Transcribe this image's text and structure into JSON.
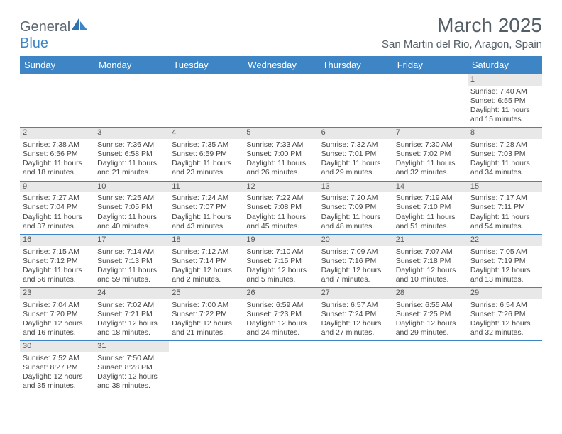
{
  "logo": {
    "text1": "General",
    "text2": "Blue"
  },
  "title": "March 2025",
  "location": "San Martin del Rio, Aragon, Spain",
  "colors": {
    "header_bg": "#3e85c6",
    "header_text": "#ffffff",
    "border": "#3e85c6",
    "daynum_bg": "#e8e8e8",
    "text": "#444444",
    "title_color": "#545e66"
  },
  "weekdays": [
    "Sunday",
    "Monday",
    "Tuesday",
    "Wednesday",
    "Thursday",
    "Friday",
    "Saturday"
  ],
  "weeks": [
    [
      null,
      null,
      null,
      null,
      null,
      null,
      {
        "n": "1",
        "sr": "Sunrise: 7:40 AM",
        "ss": "Sunset: 6:55 PM",
        "dl1": "Daylight: 11 hours",
        "dl2": "and 15 minutes."
      }
    ],
    [
      {
        "n": "2",
        "sr": "Sunrise: 7:38 AM",
        "ss": "Sunset: 6:56 PM",
        "dl1": "Daylight: 11 hours",
        "dl2": "and 18 minutes."
      },
      {
        "n": "3",
        "sr": "Sunrise: 7:36 AM",
        "ss": "Sunset: 6:58 PM",
        "dl1": "Daylight: 11 hours",
        "dl2": "and 21 minutes."
      },
      {
        "n": "4",
        "sr": "Sunrise: 7:35 AM",
        "ss": "Sunset: 6:59 PM",
        "dl1": "Daylight: 11 hours",
        "dl2": "and 23 minutes."
      },
      {
        "n": "5",
        "sr": "Sunrise: 7:33 AM",
        "ss": "Sunset: 7:00 PM",
        "dl1": "Daylight: 11 hours",
        "dl2": "and 26 minutes."
      },
      {
        "n": "6",
        "sr": "Sunrise: 7:32 AM",
        "ss": "Sunset: 7:01 PM",
        "dl1": "Daylight: 11 hours",
        "dl2": "and 29 minutes."
      },
      {
        "n": "7",
        "sr": "Sunrise: 7:30 AM",
        "ss": "Sunset: 7:02 PM",
        "dl1": "Daylight: 11 hours",
        "dl2": "and 32 minutes."
      },
      {
        "n": "8",
        "sr": "Sunrise: 7:28 AM",
        "ss": "Sunset: 7:03 PM",
        "dl1": "Daylight: 11 hours",
        "dl2": "and 34 minutes."
      }
    ],
    [
      {
        "n": "9",
        "sr": "Sunrise: 7:27 AM",
        "ss": "Sunset: 7:04 PM",
        "dl1": "Daylight: 11 hours",
        "dl2": "and 37 minutes."
      },
      {
        "n": "10",
        "sr": "Sunrise: 7:25 AM",
        "ss": "Sunset: 7:05 PM",
        "dl1": "Daylight: 11 hours",
        "dl2": "and 40 minutes."
      },
      {
        "n": "11",
        "sr": "Sunrise: 7:24 AM",
        "ss": "Sunset: 7:07 PM",
        "dl1": "Daylight: 11 hours",
        "dl2": "and 43 minutes."
      },
      {
        "n": "12",
        "sr": "Sunrise: 7:22 AM",
        "ss": "Sunset: 7:08 PM",
        "dl1": "Daylight: 11 hours",
        "dl2": "and 45 minutes."
      },
      {
        "n": "13",
        "sr": "Sunrise: 7:20 AM",
        "ss": "Sunset: 7:09 PM",
        "dl1": "Daylight: 11 hours",
        "dl2": "and 48 minutes."
      },
      {
        "n": "14",
        "sr": "Sunrise: 7:19 AM",
        "ss": "Sunset: 7:10 PM",
        "dl1": "Daylight: 11 hours",
        "dl2": "and 51 minutes."
      },
      {
        "n": "15",
        "sr": "Sunrise: 7:17 AM",
        "ss": "Sunset: 7:11 PM",
        "dl1": "Daylight: 11 hours",
        "dl2": "and 54 minutes."
      }
    ],
    [
      {
        "n": "16",
        "sr": "Sunrise: 7:15 AM",
        "ss": "Sunset: 7:12 PM",
        "dl1": "Daylight: 11 hours",
        "dl2": "and 56 minutes."
      },
      {
        "n": "17",
        "sr": "Sunrise: 7:14 AM",
        "ss": "Sunset: 7:13 PM",
        "dl1": "Daylight: 11 hours",
        "dl2": "and 59 minutes."
      },
      {
        "n": "18",
        "sr": "Sunrise: 7:12 AM",
        "ss": "Sunset: 7:14 PM",
        "dl1": "Daylight: 12 hours",
        "dl2": "and 2 minutes."
      },
      {
        "n": "19",
        "sr": "Sunrise: 7:10 AM",
        "ss": "Sunset: 7:15 PM",
        "dl1": "Daylight: 12 hours",
        "dl2": "and 5 minutes."
      },
      {
        "n": "20",
        "sr": "Sunrise: 7:09 AM",
        "ss": "Sunset: 7:16 PM",
        "dl1": "Daylight: 12 hours",
        "dl2": "and 7 minutes."
      },
      {
        "n": "21",
        "sr": "Sunrise: 7:07 AM",
        "ss": "Sunset: 7:18 PM",
        "dl1": "Daylight: 12 hours",
        "dl2": "and 10 minutes."
      },
      {
        "n": "22",
        "sr": "Sunrise: 7:05 AM",
        "ss": "Sunset: 7:19 PM",
        "dl1": "Daylight: 12 hours",
        "dl2": "and 13 minutes."
      }
    ],
    [
      {
        "n": "23",
        "sr": "Sunrise: 7:04 AM",
        "ss": "Sunset: 7:20 PM",
        "dl1": "Daylight: 12 hours",
        "dl2": "and 16 minutes."
      },
      {
        "n": "24",
        "sr": "Sunrise: 7:02 AM",
        "ss": "Sunset: 7:21 PM",
        "dl1": "Daylight: 12 hours",
        "dl2": "and 18 minutes."
      },
      {
        "n": "25",
        "sr": "Sunrise: 7:00 AM",
        "ss": "Sunset: 7:22 PM",
        "dl1": "Daylight: 12 hours",
        "dl2": "and 21 minutes."
      },
      {
        "n": "26",
        "sr": "Sunrise: 6:59 AM",
        "ss": "Sunset: 7:23 PM",
        "dl1": "Daylight: 12 hours",
        "dl2": "and 24 minutes."
      },
      {
        "n": "27",
        "sr": "Sunrise: 6:57 AM",
        "ss": "Sunset: 7:24 PM",
        "dl1": "Daylight: 12 hours",
        "dl2": "and 27 minutes."
      },
      {
        "n": "28",
        "sr": "Sunrise: 6:55 AM",
        "ss": "Sunset: 7:25 PM",
        "dl1": "Daylight: 12 hours",
        "dl2": "and 29 minutes."
      },
      {
        "n": "29",
        "sr": "Sunrise: 6:54 AM",
        "ss": "Sunset: 7:26 PM",
        "dl1": "Daylight: 12 hours",
        "dl2": "and 32 minutes."
      }
    ],
    [
      {
        "n": "30",
        "sr": "Sunrise: 7:52 AM",
        "ss": "Sunset: 8:27 PM",
        "dl1": "Daylight: 12 hours",
        "dl2": "and 35 minutes."
      },
      {
        "n": "31",
        "sr": "Sunrise: 7:50 AM",
        "ss": "Sunset: 8:28 PM",
        "dl1": "Daylight: 12 hours",
        "dl2": "and 38 minutes."
      },
      null,
      null,
      null,
      null,
      null
    ]
  ]
}
